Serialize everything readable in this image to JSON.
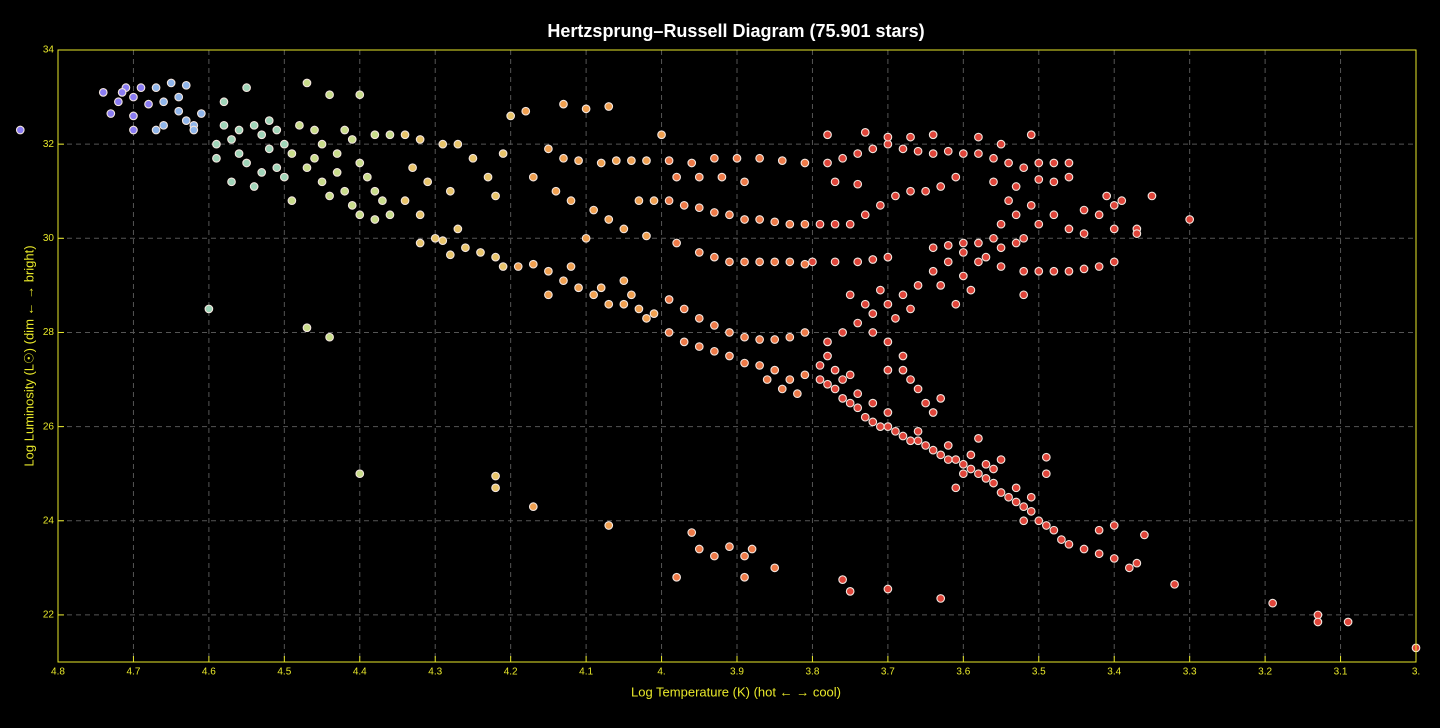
{
  "chart_data": {
    "type": "scatter",
    "title": "Hertzsprung–Russell Diagram (75.901 stars)",
    "x_label": "Log Temperature (K) (hot ← → cool)",
    "y_label": "Log Luminosity (L☉) (dim ← → bright)",
    "xlim": [
      4.8,
      3.0
    ],
    "ylim": [
      21,
      34
    ],
    "xticks": [
      4.8,
      4.7,
      4.6,
      4.5,
      4.4,
      4.3,
      4.2,
      4.1,
      {
        "value": 4,
        "label": "4."
      },
      3.9,
      3.8,
      3.7,
      3.6,
      3.5,
      3.4,
      3.3,
      3.2,
      3.1,
      {
        "value": 3,
        "label": "3."
      }
    ],
    "yticks": [
      22,
      24,
      26,
      28,
      30,
      32,
      34
    ],
    "grid": true,
    "series": [
      {
        "color": "#8a7cf2",
        "x": [
          4.85,
          4.74,
          4.72,
          4.71,
          4.7,
          4.73,
          4.7,
          4.68,
          4.7,
          4.715,
          4.69
        ],
        "y": [
          32.3,
          33.1,
          32.9,
          33.2,
          33.0,
          32.65,
          32.6,
          32.85,
          32.3,
          33.1,
          33.2
        ]
      },
      {
        "color": "#8fb5ea",
        "x": [
          4.67,
          4.65,
          4.63,
          4.66,
          4.64,
          4.63,
          4.62,
          4.66,
          4.67,
          4.64,
          4.61,
          4.62
        ],
        "y": [
          33.2,
          33.3,
          33.25,
          32.9,
          32.7,
          32.5,
          32.4,
          32.4,
          32.3,
          33.0,
          32.65,
          32.3
        ]
      },
      {
        "color": "#9fd4b8",
        "x": [
          4.6,
          4.55,
          4.58,
          4.57,
          4.56,
          4.59,
          4.54,
          4.53,
          4.52,
          4.55,
          4.51,
          4.5,
          4.57,
          4.54,
          4.58,
          4.52,
          4.56,
          4.53,
          4.51,
          4.59,
          4.5
        ],
        "y": [
          28.5,
          33.2,
          32.4,
          32.1,
          31.8,
          32.0,
          32.4,
          32.2,
          31.9,
          31.6,
          31.5,
          32.0,
          31.2,
          31.1,
          32.9,
          32.5,
          32.3,
          31.4,
          32.3,
          31.7,
          31.3
        ]
      },
      {
        "color": "#c8dc8a",
        "x": [
          4.47,
          4.44,
          4.4,
          4.48,
          4.46,
          4.45,
          4.43,
          4.42,
          4.41,
          4.4,
          4.39,
          4.38,
          4.37,
          4.36,
          4.49,
          4.47,
          4.45,
          4.44,
          4.42,
          4.4,
          4.38,
          4.47,
          4.44,
          4.4,
          4.49,
          4.46,
          4.43,
          4.41,
          4.36,
          4.38
        ],
        "y": [
          33.3,
          33.05,
          33.05,
          32.4,
          32.3,
          32.0,
          31.8,
          32.3,
          32.1,
          31.6,
          31.3,
          31.0,
          30.8,
          30.5,
          31.8,
          31.5,
          31.2,
          30.9,
          31.0,
          30.5,
          30.4,
          28.1,
          27.9,
          25.0,
          30.8,
          31.7,
          31.4,
          30.7,
          32.2,
          32.2
        ]
      },
      {
        "color": "#e8c46a",
        "x": [
          4.34,
          4.32,
          4.29,
          4.27,
          4.33,
          4.31,
          4.28,
          4.34,
          4.32,
          4.3,
          4.29,
          4.27,
          4.26,
          4.24,
          4.22,
          4.21,
          4.25,
          4.23,
          4.22,
          4.22,
          4.22,
          4.21,
          4.2,
          4.32,
          4.28
        ],
        "y": [
          32.2,
          32.1,
          32.0,
          32.0,
          31.5,
          31.2,
          31.0,
          30.8,
          30.5,
          30.0,
          29.95,
          30.2,
          29.8,
          29.7,
          29.6,
          29.4,
          31.7,
          31.3,
          30.9,
          24.95,
          24.7,
          31.8,
          32.6,
          29.9,
          29.65
        ]
      },
      {
        "color": "#f0a050",
        "x": [
          4.19,
          4.17,
          4.15,
          4.13,
          4.11,
          4.09,
          4.07,
          4.05,
          4.03,
          4.01,
          4.17,
          4.07,
          4.18,
          4.13,
          4.1,
          4.07,
          4.0,
          4.15,
          4.13,
          4.11,
          4.08,
          4.06,
          4.04,
          4.02,
          4.17,
          4.14,
          4.12,
          4.09,
          4.07,
          4.05,
          4.03,
          4.01,
          4.12,
          4.08,
          4.04,
          4.02,
          4.1,
          4.15,
          4.05,
          4.02
        ],
        "y": [
          29.4,
          29.45,
          29.3,
          29.1,
          28.95,
          28.8,
          28.6,
          28.6,
          28.5,
          28.4,
          24.3,
          23.9,
          32.7,
          32.85,
          32.75,
          32.8,
          32.2,
          31.9,
          31.7,
          31.65,
          31.6,
          31.65,
          31.65,
          31.65,
          31.3,
          31.0,
          30.8,
          30.6,
          30.4,
          30.2,
          30.8,
          30.8,
          29.4,
          28.95,
          28.8,
          28.3,
          30.0,
          28.8,
          29.1,
          30.05
        ]
      },
      {
        "color": "#ee7a48",
        "x": [
          3.99,
          3.97,
          3.95,
          3.93,
          3.91,
          3.89,
          3.87,
          3.85,
          3.83,
          3.81,
          3.99,
          3.97,
          3.95,
          3.93,
          3.91,
          3.89,
          3.87,
          3.85,
          3.83,
          3.81,
          3.99,
          3.96,
          3.93,
          3.9,
          3.87,
          3.84,
          3.81,
          3.98,
          3.95,
          3.92,
          3.89,
          3.99,
          3.97,
          3.95,
          3.93,
          3.91,
          3.89,
          3.87,
          3.85,
          3.83,
          3.81,
          3.95,
          3.93,
          3.91,
          3.89,
          3.87,
          3.85,
          3.83,
          3.81,
          3.96,
          3.95,
          3.93,
          3.91,
          3.89,
          3.88,
          3.89,
          3.98,
          3.85,
          3.98,
          3.84,
          3.82,
          3.86
        ],
        "y": [
          28.7,
          28.5,
          28.3,
          28.15,
          28.0,
          27.9,
          27.85,
          27.85,
          27.9,
          28.0,
          28.0,
          27.8,
          27.7,
          27.6,
          27.5,
          27.35,
          27.3,
          27.2,
          27.0,
          27.1,
          31.65,
          31.6,
          31.7,
          31.7,
          31.7,
          31.65,
          31.6,
          31.3,
          31.3,
          31.3,
          31.2,
          30.8,
          30.7,
          30.65,
          30.55,
          30.5,
          30.4,
          30.4,
          30.35,
          30.3,
          30.3,
          29.7,
          29.6,
          29.5,
          29.5,
          29.5,
          29.5,
          29.5,
          29.45,
          23.75,
          23.4,
          23.25,
          23.45,
          23.25,
          23.4,
          22.8,
          22.8,
          23.0,
          29.9,
          26.8,
          26.7,
          27.0
        ]
      },
      {
        "color": "#e0453a",
        "x": [
          3.79,
          3.78,
          3.77,
          3.76,
          3.75,
          3.74,
          3.73,
          3.72,
          3.71,
          3.7,
          3.69,
          3.68,
          3.67,
          3.66,
          3.65,
          3.64,
          3.63,
          3.62,
          3.61,
          3.6,
          3.59,
          3.58,
          3.57,
          3.56,
          3.55,
          3.54,
          3.53,
          3.52,
          3.51,
          3.5,
          3.49,
          3.48,
          3.47,
          3.46,
          3.44,
          3.42,
          3.4,
          3.38,
          3.37,
          3.36,
          3.4,
          3.42,
          3.32,
          3.19,
          3.13,
          3.13,
          3.09,
          3.0,
          3.79,
          3.78,
          3.77,
          3.76,
          3.75,
          3.74,
          3.72,
          3.7,
          3.66,
          3.62,
          3.59,
          3.56,
          3.53,
          3.51,
          3.55,
          3.57,
          3.6,
          3.61,
          3.52,
          3.49,
          3.49,
          3.78,
          3.76,
          3.74,
          3.72,
          3.7,
          3.68,
          3.66,
          3.64,
          3.62,
          3.6,
          3.58,
          3.56,
          3.55,
          3.53,
          3.51,
          3.72,
          3.7,
          3.68,
          3.67,
          3.68,
          3.66,
          3.7,
          3.65,
          3.64,
          3.69,
          3.67,
          3.71,
          3.73,
          3.75,
          3.8,
          3.77,
          3.74,
          3.72,
          3.7,
          3.64,
          3.62,
          3.6,
          3.58,
          3.55,
          3.52,
          3.5,
          3.48,
          3.46,
          3.44,
          3.42,
          3.4,
          3.52,
          3.79,
          3.77,
          3.75,
          3.73,
          3.71,
          3.69,
          3.67,
          3.65,
          3.63,
          3.61,
          3.78,
          3.76,
          3.74,
          3.72,
          3.7,
          3.68,
          3.66,
          3.64,
          3.62,
          3.6,
          3.58,
          3.56,
          3.54,
          3.52,
          3.5,
          3.48,
          3.46,
          3.77,
          3.74,
          3.78,
          3.73,
          3.7,
          3.67,
          3.64,
          3.58,
          3.55,
          3.51,
          3.56,
          3.53,
          3.5,
          3.48,
          3.46,
          3.54,
          3.5,
          3.48,
          3.46,
          3.44,
          3.42,
          3.4,
          3.41,
          3.39,
          3.37,
          3.37,
          3.35,
          3.3,
          3.44,
          3.4,
          3.52,
          3.57,
          3.55,
          3.53,
          3.59,
          3.61,
          3.6,
          3.63,
          3.76,
          3.75,
          3.7,
          3.63,
          3.63,
          3.58
        ],
        "y": [
          27.0,
          26.9,
          26.8,
          26.6,
          26.5,
          26.4,
          26.2,
          26.1,
          26.0,
          26.0,
          25.9,
          25.8,
          25.7,
          25.7,
          25.6,
          25.5,
          25.4,
          25.3,
          25.3,
          25.2,
          25.1,
          25.0,
          24.9,
          24.8,
          24.6,
          24.5,
          24.4,
          24.3,
          24.2,
          24.0,
          23.9,
          23.8,
          23.6,
          23.5,
          23.4,
          23.3,
          23.2,
          23.0,
          23.1,
          23.7,
          23.9,
          23.8,
          22.65,
          22.25,
          22.0,
          21.85,
          21.85,
          21.3,
          27.3,
          27.5,
          27.2,
          27.0,
          27.1,
          26.7,
          26.5,
          26.3,
          25.9,
          25.6,
          25.4,
          25.1,
          24.7,
          24.5,
          25.3,
          25.2,
          25.0,
          24.7,
          24.0,
          25.0,
          25.35,
          27.8,
          28.0,
          28.2,
          28.4,
          28.6,
          28.8,
          29.0,
          29.3,
          29.5,
          29.7,
          29.9,
          30.0,
          30.3,
          30.5,
          30.7,
          28.0,
          27.8,
          27.5,
          27.0,
          27.2,
          26.8,
          27.2,
          26.5,
          26.3,
          28.3,
          28.5,
          28.9,
          28.6,
          28.8,
          29.5,
          29.5,
          29.5,
          29.55,
          29.6,
          29.8,
          29.85,
          29.9,
          29.5,
          29.4,
          29.3,
          29.3,
          29.3,
          29.3,
          29.35,
          29.4,
          29.5,
          28.8,
          30.3,
          30.3,
          30.3,
          30.5,
          30.7,
          30.9,
          31.0,
          31.0,
          31.1,
          31.3,
          31.6,
          31.7,
          31.8,
          31.9,
          32.0,
          31.9,
          31.85,
          31.8,
          31.85,
          31.8,
          31.8,
          31.7,
          31.6,
          31.5,
          31.6,
          31.6,
          31.6,
          31.2,
          31.15,
          32.2,
          32.25,
          32.15,
          32.15,
          32.2,
          32.15,
          32.0,
          32.2,
          31.2,
          31.1,
          31.25,
          31.2,
          31.3,
          30.8,
          30.3,
          30.5,
          30.2,
          30.6,
          30.5,
          30.7,
          30.9,
          30.8,
          30.2,
          30.1,
          30.9,
          30.4,
          30.1,
          30.2,
          30.0,
          29.6,
          29.8,
          29.9,
          28.9,
          28.6,
          29.2,
          29.0,
          22.75,
          22.5,
          22.55,
          22.35,
          26.6,
          25.75
        ]
      }
    ]
  }
}
